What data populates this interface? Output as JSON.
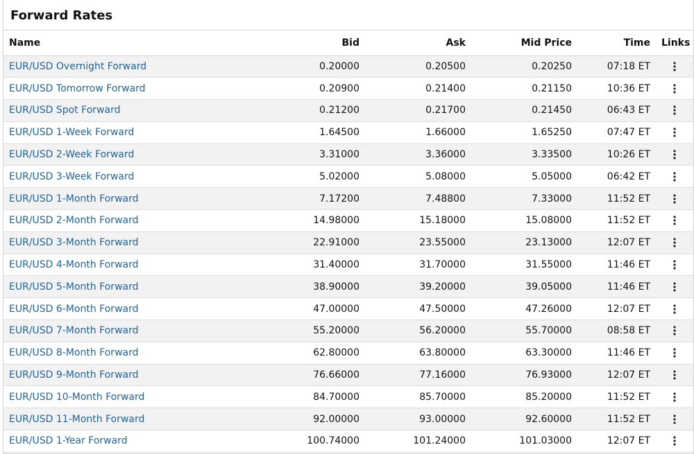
{
  "header": {
    "title": "Forward Rates"
  },
  "table": {
    "columns": [
      "Name",
      "Bid",
      "Ask",
      "Mid Price",
      "Time",
      "Links"
    ],
    "rows": [
      [
        "EUR/USD Overnight Forward",
        "0.20000",
        "0.20500",
        "0.20250",
        "07:18 ET"
      ],
      [
        "EUR/USD Tomorrow Forward",
        "0.20900",
        "0.21400",
        "0.21150",
        "10:36 ET"
      ],
      [
        "EUR/USD Spot Forward",
        "0.21200",
        "0.21700",
        "0.21450",
        "06:43 ET"
      ],
      [
        "EUR/USD 1-Week Forward",
        "1.64500",
        "1.66000",
        "1.65250",
        "07:47 ET"
      ],
      [
        "EUR/USD 2-Week Forward",
        "3.31000",
        "3.36000",
        "3.33500",
        "10:26 ET"
      ],
      [
        "EUR/USD 3-Week Forward",
        "5.02000",
        "5.08000",
        "5.05000",
        "06:42 ET"
      ],
      [
        "EUR/USD 1-Month Forward",
        "7.17200",
        "7.48800",
        "7.33000",
        "11:52 ET"
      ],
      [
        "EUR/USD 2-Month Forward",
        "14.98000",
        "15.18000",
        "15.08000",
        "11:52 ET"
      ],
      [
        "EUR/USD 3-Month Forward",
        "22.91000",
        "23.55000",
        "23.13000",
        "12:07 ET"
      ],
      [
        "EUR/USD 4-Month Forward",
        "31.40000",
        "31.70000",
        "31.55000",
        "11:46 ET"
      ],
      [
        "EUR/USD 5-Month Forward",
        "38.90000",
        "39.20000",
        "39.05000",
        "11:46 ET"
      ],
      [
        "EUR/USD 6-Month Forward",
        "47.00000",
        "47.50000",
        "47.26000",
        "12:07 ET"
      ],
      [
        "EUR/USD 7-Month Forward",
        "55.20000",
        "56.20000",
        "55.70000",
        "08:58 ET"
      ],
      [
        "EUR/USD 8-Month Forward",
        "62.80000",
        "63.80000",
        "63.30000",
        "11:46 ET"
      ],
      [
        "EUR/USD 9-Month Forward",
        "76.66000",
        "77.16000",
        "76.93000",
        "12:07 ET"
      ],
      [
        "EUR/USD 10-Month Forward",
        "84.70000",
        "85.70000",
        "85.20000",
        "11:52 ET"
      ],
      [
        "EUR/USD 11-Month Forward",
        "92.00000",
        "93.00000",
        "92.60000",
        "11:52 ET"
      ],
      [
        "EUR/USD 1-Year Forward",
        "100.74000",
        "101.24000",
        "101.03000",
        "12:07 ET"
      ]
    ]
  }
}
